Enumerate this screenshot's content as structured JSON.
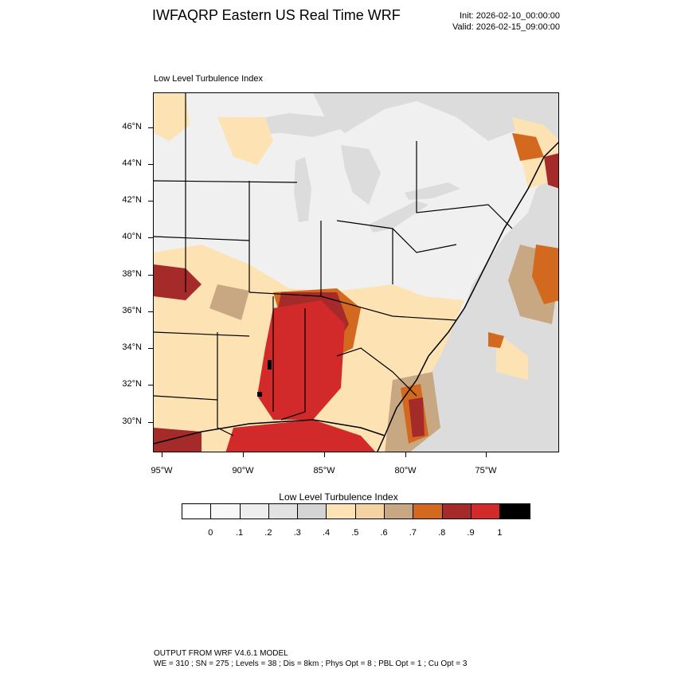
{
  "header": {
    "title": "IWFAQRP Eastern US Real Time WRF",
    "init": "Init: 2026-02-10_00:00:00",
    "valid": "Valid: 2026-02-15_09:00:00"
  },
  "map": {
    "subtitle": "Low Level Turbulence Index",
    "lat_labels": [
      "46°N",
      "44°N",
      "42°N",
      "40°N",
      "38°N",
      "36°N",
      "34°N",
      "32°N",
      "30°N"
    ],
    "lon_labels": [
      "95°W",
      "90°W",
      "85°W",
      "80°W",
      "75°W"
    ],
    "colors": {
      "ocean_gray": "#dcdcdc",
      "land_white": "#f5f5f5",
      "light_orange": "#fde3b4",
      "tan": "#c8a882",
      "dark_orange": "#d2691e",
      "brown_red": "#a52a2a",
      "red": "#d22a2a",
      "black": "#000000"
    }
  },
  "colorbar": {
    "title": "Low Level Turbulence Index",
    "colors": [
      "#ffffff",
      "#f8f8f8",
      "#eeeeee",
      "#e2e2e2",
      "#d4d4d4",
      "#fde3b4",
      "#f5d3a0",
      "#c8a882",
      "#d2691e",
      "#a52a2a",
      "#d22a2a",
      "#000000"
    ],
    "labels": [
      "0",
      ".1",
      ".2",
      ".3",
      ".4",
      ".5",
      ".6",
      ".7",
      ".8",
      ".9",
      "1"
    ]
  },
  "footer": {
    "line1": "OUTPUT FROM WRF V4.6.1 MODEL",
    "line2": "WE = 310 ; SN = 275 ; Levels = 38 ; Dis = 8km ; Phys Opt = 8 ; PBL Opt = 1 ; Cu Opt = 3"
  }
}
